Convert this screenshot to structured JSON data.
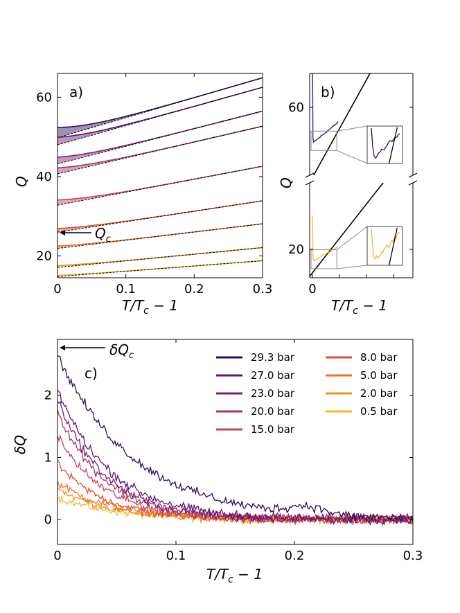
{
  "colors": {
    "p29_3": "#2d0a5f",
    "p27_0": "#5e1471",
    "p23_0": "#7a1f6d",
    "p20_0": "#a63166",
    "p15_0": "#c7415c",
    "p8_0": "#dd4e3a",
    "p5_0": "#ee7322",
    "p2_0": "#f48f1c",
    "p0_5": "#fbb726"
  },
  "chart_data": [
    {
      "id": "a",
      "type": "line",
      "panel_label": "a)",
      "xlabel": "T/T_c − 1",
      "ylabel": "Q",
      "xlim": [
        0,
        0.3
      ],
      "ylim": [
        14.5,
        66
      ],
      "xticks": [
        0,
        0.1,
        0.2,
        0.3
      ],
      "xtick_labels": [
        "0",
        "0.1",
        "0.2",
        "0.3"
      ],
      "yticks": [
        20,
        40,
        60
      ],
      "ytick_labels": [
        "20",
        "40",
        "60"
      ],
      "annotation": "Q_c",
      "annotation_label": "Q",
      "annotation_sub": "c",
      "series": [
        {
          "name": "29.3 bar",
          "color_key": "p29_3",
          "fit_start": 49.8,
          "fit_end": 64.9,
          "excess": 2.6
        },
        {
          "name": "27.0 bar",
          "color_key": "p27_0",
          "fit_start": 48.0,
          "fit_end": 62.5,
          "excess": 1.9
        },
        {
          "name": "23.0 bar",
          "color_key": "p23_0",
          "fit_start": 43.2,
          "fit_end": 56.5,
          "excess": 1.7
        },
        {
          "name": "20.0 bar",
          "color_key": "p20_0",
          "fit_start": 40.7,
          "fit_end": 52.7,
          "excess": 1.5
        },
        {
          "name": "15.0 bar",
          "color_key": "p15_0",
          "fit_start": 32.8,
          "fit_end": 42.6,
          "excess": 1.3
        },
        {
          "name": "8.0 bar",
          "color_key": "p8_0",
          "fit_start": 26.0,
          "fit_end": 33.9,
          "excess": 0.9
        },
        {
          "name": "5.0 bar",
          "color_key": "p5_0",
          "fit_start": 21.9,
          "fit_end": 28.1,
          "excess": 0.6
        },
        {
          "name": "2.0 bar",
          "color_key": "p2_0",
          "fit_start": 17.1,
          "fit_end": 22.1,
          "excess": 0.5
        },
        {
          "name": "0.5 bar",
          "color_key": "p0_5",
          "fit_start": 14.8,
          "fit_end": 18.8,
          "excess": 0.3
        }
      ]
    },
    {
      "id": "b",
      "type": "line",
      "panel_label": "b)",
      "xlabel": "T/T_c − 1",
      "ylabel": "Q",
      "xlim": [
        -0.01,
        0.37
      ],
      "upper_ylim": [
        46,
        67
      ],
      "lower_ylim": [
        14,
        34
      ],
      "upper_yticks": [
        60
      ],
      "lower_yticks": [
        20
      ],
      "upper_series": {
        "color_key": "p29_3",
        "line_start": 44.5,
        "line_end": 83.0,
        "data_min": 52.6,
        "spike": 73
      },
      "lower_series": {
        "color_key": "p0_5",
        "line_start": 14.3,
        "line_end": 42.0,
        "data_min": 17.4,
        "spike": 27
      }
    },
    {
      "id": "c",
      "type": "line",
      "panel_label": "c)",
      "xlabel": "T/T_c − 1",
      "ylabel": "δQ",
      "xlim": [
        0,
        0.3
      ],
      "ylim": [
        -0.4,
        2.9
      ],
      "xticks": [
        0,
        0.1,
        0.2,
        0.3
      ],
      "xtick_labels": [
        "0",
        "0.1",
        "0.2",
        "0.3"
      ],
      "yticks": [
        0,
        1,
        2
      ],
      "ytick_labels": [
        "0",
        "1",
        "2"
      ],
      "annotation": "δQ_c",
      "annotation_label": "δQ",
      "annotation_sub": "c",
      "series": [
        {
          "name": "29.3 bar",
          "color_key": "p29_3",
          "start": 2.65,
          "tau": 0.065,
          "noise": 0.06
        },
        {
          "name": "27.0 bar",
          "color_key": "p27_0",
          "start": 2.1,
          "tau": 0.045,
          "noise": 0.06
        },
        {
          "name": "23.0 bar",
          "color_key": "p23_0",
          "start": 1.95,
          "tau": 0.04,
          "noise": 0.06
        },
        {
          "name": "20.0 bar",
          "color_key": "p20_0",
          "start": 1.75,
          "tau": 0.04,
          "noise": 0.06
        },
        {
          "name": "15.0 bar",
          "color_key": "p15_0",
          "start": 1.35,
          "tau": 0.04,
          "noise": 0.06
        },
        {
          "name": "8.0 bar",
          "color_key": "p8_0",
          "start": 0.9,
          "tau": 0.04,
          "noise": 0.05
        },
        {
          "name": "5.0 bar",
          "color_key": "p5_0",
          "start": 0.6,
          "tau": 0.045,
          "noise": 0.05
        },
        {
          "name": "2.0 bar",
          "color_key": "p2_0",
          "start": 0.5,
          "tau": 0.045,
          "noise": 0.05
        },
        {
          "name": "0.5 bar",
          "color_key": "p0_5",
          "start": 0.35,
          "tau": 0.05,
          "noise": 0.05
        }
      ]
    }
  ]
}
